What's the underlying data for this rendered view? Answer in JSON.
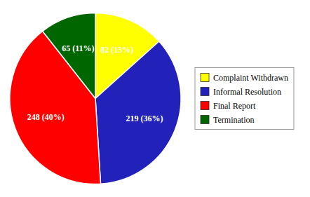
{
  "chart_data": {
    "type": "pie",
    "categories": [
      "Complaint Withdrawn",
      "Informal Resolution",
      "Final Report",
      "Termination"
    ],
    "values": [
      82,
      219,
      248,
      65
    ],
    "value_labels": [
      "82 (13%)",
      "219 (36%)",
      "248 (40%)",
      "65 (11%)"
    ],
    "colors": [
      "#FFFF00",
      "#2222BB",
      "#FF0000",
      "#006600"
    ],
    "data_labels": true,
    "legend": "right"
  }
}
